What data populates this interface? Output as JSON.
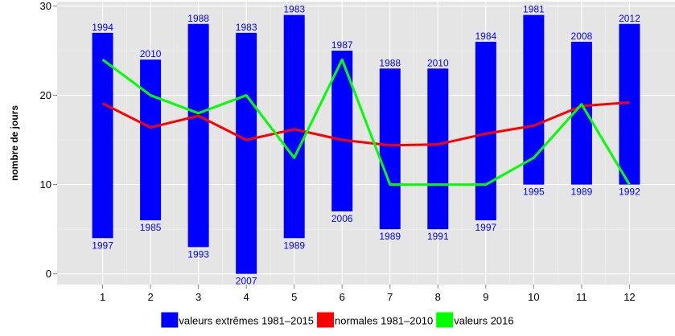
{
  "chart_data": {
    "type": "bar",
    "ylabel": "nombre de jours",
    "xlabel": "",
    "x": [
      1,
      2,
      3,
      4,
      5,
      6,
      7,
      8,
      9,
      10,
      11,
      12
    ],
    "x_tick_labels": [
      "1",
      "2",
      "3",
      "4",
      "5",
      "6",
      "7",
      "8",
      "9",
      "10",
      "11",
      "12"
    ],
    "y_tick_labels": [
      "0",
      "10",
      "20",
      "30"
    ],
    "y_ticks": [
      0,
      10,
      20,
      30
    ],
    "xlim": [
      0.05,
      12.95
    ],
    "ylim": [
      -1.2,
      30.5
    ],
    "grid": true,
    "legend_position": "bottom",
    "series": [
      {
        "name": "valeurs extrêmes 1981–2015",
        "kind": "range-bar",
        "color": "#0000ff",
        "max": [
          27,
          24,
          28,
          27,
          29,
          25,
          23,
          23,
          26,
          29,
          26,
          28
        ],
        "max_year": [
          "1994",
          "2010",
          "1988",
          "1983",
          "1983",
          "1987",
          "1988",
          "2010",
          "1984",
          "1981",
          "2008",
          "2012"
        ],
        "min": [
          4,
          6,
          3,
          0,
          4,
          7,
          5,
          5,
          6,
          10,
          10,
          10
        ],
        "min_year": [
          "1997",
          "1985",
          "1993",
          "2007",
          "1989",
          "2006",
          "1989",
          "1991",
          "1997",
          "1995",
          "1989",
          "1992"
        ]
      },
      {
        "name": "normales 1981–2010",
        "kind": "line",
        "color": "#ff0000",
        "values": [
          19.1,
          16.4,
          17.7,
          15.0,
          16.2,
          15.0,
          14.4,
          14.5,
          15.7,
          16.6,
          18.8,
          19.2
        ]
      },
      {
        "name": "valeurs 2016",
        "kind": "line",
        "color": "#00ff00",
        "values": [
          24,
          20,
          18,
          20,
          13,
          24,
          10,
          10,
          10,
          13,
          19,
          10
        ]
      }
    ],
    "colors": {
      "panel_background": "#e5e5e5",
      "grid": "#ffffff",
      "axis_tick": "#7f7f7f"
    }
  }
}
